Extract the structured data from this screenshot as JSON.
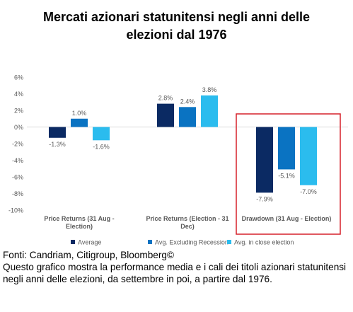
{
  "header": {
    "title_line1": "Mercati azionari statunitensi negli anni delle",
    "title_line2": "elezioni dal 1976"
  },
  "footer": {
    "source": "Fonti: Candriam, Citigroup, Bloomberg©",
    "caption": "Questo grafico mostra la performance media e i cali dei titoli azionari statunitensi negli anni delle elezioni, da settembre in poi, a partire dal 1976."
  },
  "colors": {
    "average": "#0b2a63",
    "excluding_recession": "#0a73c2",
    "close_election": "#2bbcee",
    "highlight_box": "#d6202a",
    "axis_text": "#595959",
    "grid": "#d9d9d9"
  },
  "chart_data": {
    "type": "bar",
    "title": "Mercati azionari statunitensi negli anni delle elezioni dal 1976",
    "categories": [
      [
        "Price Returns (31 Aug -",
        "Election)"
      ],
      [
        "Price Returns (Election - 31",
        "Dec)"
      ],
      [
        "Drawdown (31 Aug - Election)"
      ]
    ],
    "series": [
      {
        "name": "Average",
        "values": [
          -1.3,
          2.8,
          -7.9
        ],
        "labels": [
          "-1.3%",
          "2.8%",
          "-7.9%"
        ]
      },
      {
        "name": "Avg. Excluding Recession",
        "values": [
          1.0,
          2.4,
          -5.1
        ],
        "labels": [
          "1.0%",
          "2.4%",
          "-5.1%"
        ]
      },
      {
        "name": "Avg. in close election",
        "values": [
          -1.6,
          3.8,
          -7.0
        ],
        "labels": [
          "-1.6%",
          "3.8%",
          "-7.0%"
        ]
      }
    ],
    "yticks": [
      "6%",
      "4%",
      "2%",
      "0%",
      "-2%",
      "-4%",
      "-6%",
      "-8%",
      "-10%"
    ],
    "ylim": [
      -10,
      6
    ],
    "legend_position": "bottom",
    "highlighted_category": "Drawdown (31 Aug - Election)"
  }
}
